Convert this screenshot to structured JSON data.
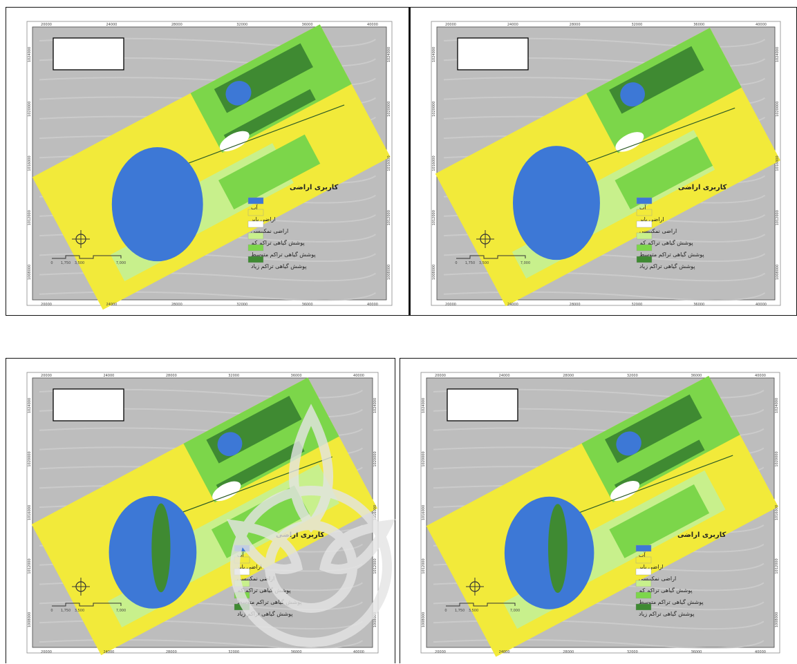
{
  "maps": [
    {
      "id": "map-1",
      "legend": {
        "title": "کاربری اراضی",
        "items": [
          {
            "label": "آب",
            "color": "#3d78d6"
          },
          {
            "label": "اراضی بایر",
            "color": "#f2ea3a"
          },
          {
            "label": "اراضی نمکپیسی",
            "color": "#ffffff"
          },
          {
            "label": "پوشش گیاهی تراکم کم",
            "color": "#c8f08c"
          },
          {
            "label": "پوشش گیاهی تراکم متوسط",
            "color": "#7cd64a"
          },
          {
            "label": "پوشش گیاهی تراکم زیاد",
            "color": "#3f8a32"
          }
        ]
      },
      "top_ticks": [
        "20000",
        "24000",
        "28000",
        "32000",
        "36000",
        "40000"
      ],
      "bottom_ticks": [
        "20000",
        "24000",
        "28000",
        "32000",
        "36000",
        "40000"
      ],
      "left_ticks": [
        "1024000",
        "1020000",
        "1016000",
        "1012000",
        "1008000"
      ],
      "scale": [
        "0",
        "1,750",
        "3,500",
        "7,000"
      ]
    },
    {
      "id": "map-2",
      "legend": {
        "title": "کاربری اراضی",
        "items": [
          {
            "label": "آب",
            "color": "#3d78d6"
          },
          {
            "label": "اراضی بایر",
            "color": "#f2ea3a"
          },
          {
            "label": "اراضی نمکپیسی",
            "color": "#ffffff"
          },
          {
            "label": "پوشش گیاهی تراکم کم",
            "color": "#c8f08c"
          },
          {
            "label": "پوشش گیاهی تراکم متوسط",
            "color": "#7cd64a"
          },
          {
            "label": "پوشش گیاهی تراکم زیاد",
            "color": "#3f8a32"
          }
        ]
      },
      "top_ticks": [
        "20000",
        "24000",
        "28000",
        "32000",
        "36000",
        "40000"
      ],
      "bottom_ticks": [
        "20000",
        "24000",
        "28000",
        "32000",
        "36000",
        "40000"
      ],
      "left_ticks": [
        "1024000",
        "1020000",
        "1016000",
        "1012000",
        "1008000"
      ],
      "scale": [
        "0",
        "1,750",
        "3,500",
        "7,000"
      ]
    },
    {
      "id": "map-3",
      "legend": {
        "title": "کاربری اراضی",
        "items": [
          {
            "label": "آب",
            "color": "#3d78d6"
          },
          {
            "label": "اراضی بایر",
            "color": "#f2ea3a"
          },
          {
            "label": "اراضی نمکپیسی",
            "color": "#ffffff"
          },
          {
            "label": "پوشش گیاهی تراکم کم",
            "color": "#c8f08c"
          },
          {
            "label": "پوشش گیاهی تراکم متوسط",
            "color": "#7cd64a"
          },
          {
            "label": "پوشش گیاهی تراکم زیاد",
            "color": "#3f8a32"
          }
        ]
      },
      "top_ticks": [
        "20000",
        "24000",
        "28000",
        "32000",
        "36000",
        "40000"
      ],
      "bottom_ticks": [
        "20000",
        "24000",
        "28000",
        "32000",
        "36000",
        "40000"
      ],
      "left_ticks": [
        "1024000",
        "1020000",
        "1016000",
        "1012000",
        "1008000"
      ],
      "scale": [
        "0",
        "1,750",
        "3,500",
        "7,000"
      ]
    },
    {
      "id": "map-4",
      "legend": {
        "title": "کاربری اراضی",
        "items": [
          {
            "label": "آب",
            "color": "#3d78d6"
          },
          {
            "label": "اراضی بایر",
            "color": "#f2ea3a"
          },
          {
            "label": "اراضی نمکپیسی",
            "color": "#ffffff"
          },
          {
            "label": "پوشش گیاهی تراکم کم",
            "color": "#c8f08c"
          },
          {
            "label": "پوشش گیاهی تراکم متوسط",
            "color": "#7cd64a"
          },
          {
            "label": "پوشش گیاهی تراکم زیاد",
            "color": "#3f8a32"
          }
        ]
      },
      "top_ticks": [
        "20000",
        "24000",
        "28000",
        "32000",
        "36000",
        "40000"
      ],
      "bottom_ticks": [
        "20000",
        "24000",
        "28000",
        "32000",
        "36000",
        "40000"
      ],
      "left_ticks": [
        "1024000",
        "1020000",
        "1016000",
        "1012000",
        "1008000"
      ],
      "scale": [
        "0",
        "1,750",
        "3,500",
        "7,000"
      ]
    }
  ]
}
